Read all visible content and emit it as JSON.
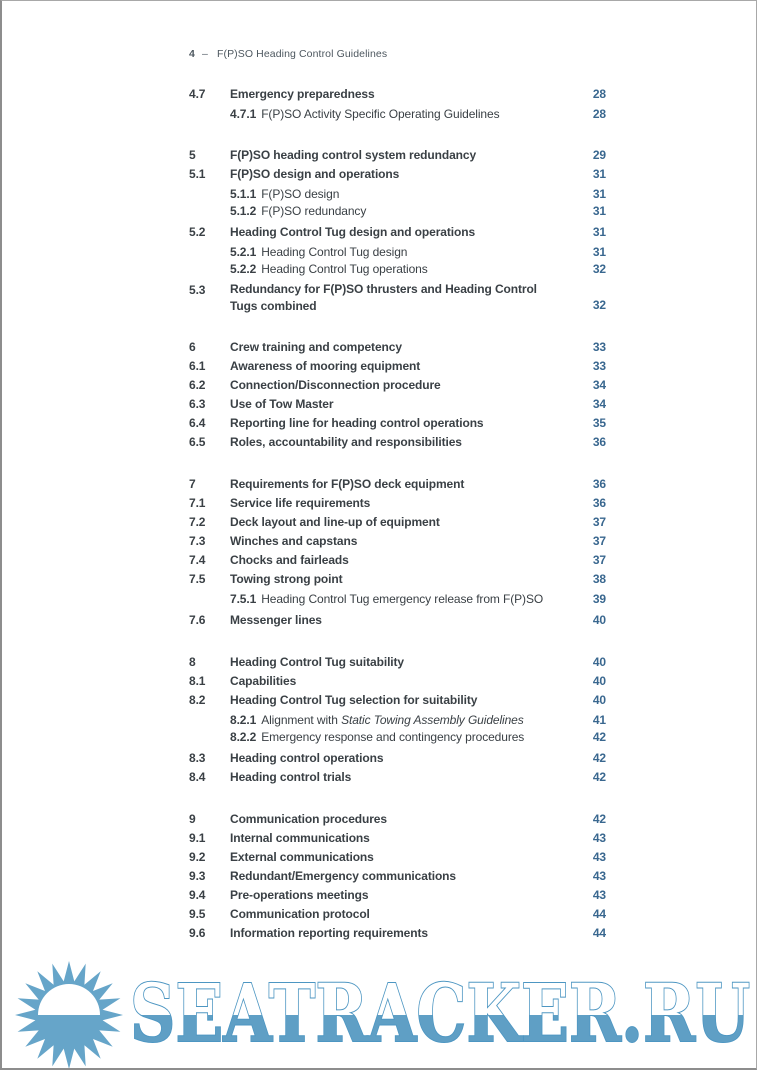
{
  "running_header": {
    "page_number": "4",
    "separator": "–",
    "title": "F(P)SO Heading Control Guidelines"
  },
  "toc": {
    "sections": [
      {
        "entries": [
          {
            "level": 2,
            "num": "4.7",
            "title": "Emergency preparedness",
            "page": "28"
          },
          {
            "level": 3,
            "num": "4.7.1",
            "title": "F(P)SO Activity Specific Operating Guidelines",
            "page": "28"
          }
        ]
      },
      {
        "entries": [
          {
            "level": 1,
            "num": "5",
            "title": "F(P)SO heading control system redundancy",
            "page": "29"
          },
          {
            "level": 2,
            "num": "5.1",
            "title": "F(P)SO design and operations",
            "page": "31"
          },
          {
            "level": 3,
            "num": "5.1.1",
            "title": "F(P)SO design",
            "page": "31"
          },
          {
            "level": 3,
            "num": "5.1.2",
            "title": "F(P)SO redundancy",
            "page": "31"
          },
          {
            "level": 2,
            "num": "5.2",
            "title": "Heading Control Tug design and operations",
            "page": "31"
          },
          {
            "level": 3,
            "num": "5.2.1",
            "title": "Heading Control Tug design",
            "page": "31"
          },
          {
            "level": 3,
            "num": "5.2.2",
            "title": "Heading Control Tug operations",
            "page": "32"
          },
          {
            "level": 2,
            "num": "5.3",
            "title_lines": [
              "Redundancy for F(P)SO thrusters and Heading Control",
              "Tugs combined"
            ],
            "page": "32"
          }
        ]
      },
      {
        "entries": [
          {
            "level": 1,
            "num": "6",
            "title": "Crew training and competency",
            "page": "33"
          },
          {
            "level": 2,
            "num": "6.1",
            "title": "Awareness of mooring equipment",
            "page": "33"
          },
          {
            "level": 2,
            "num": "6.2",
            "title": "Connection/Disconnection procedure",
            "page": "34"
          },
          {
            "level": 2,
            "num": "6.3",
            "title": "Use of Tow Master",
            "page": "34"
          },
          {
            "level": 2,
            "num": "6.4",
            "title": "Reporting line for heading control operations",
            "page": "35"
          },
          {
            "level": 2,
            "num": "6.5",
            "title": "Roles, accountability and responsibilities",
            "page": "36"
          }
        ]
      },
      {
        "entries": [
          {
            "level": 1,
            "num": "7",
            "title": "Requirements for F(P)SO deck equipment",
            "page": "36"
          },
          {
            "level": 2,
            "num": "7.1",
            "title": "Service life requirements",
            "page": "36"
          },
          {
            "level": 2,
            "num": "7.2",
            "title": "Deck layout and line-up of equipment",
            "page": "37"
          },
          {
            "level": 2,
            "num": "7.3",
            "title": "Winches and capstans",
            "page": "37"
          },
          {
            "level": 2,
            "num": "7.4",
            "title": "Chocks and fairleads",
            "page": "37"
          },
          {
            "level": 2,
            "num": "7.5",
            "title": "Towing strong point",
            "page": "38"
          },
          {
            "level": 3,
            "num": "7.5.1",
            "title": "Heading Control Tug emergency release from F(P)SO",
            "page": "39"
          },
          {
            "level": 2,
            "num": "7.6",
            "title": "Messenger lines",
            "page": "40"
          }
        ]
      },
      {
        "entries": [
          {
            "level": 1,
            "num": "8",
            "title": "Heading Control Tug suitability",
            "page": "40"
          },
          {
            "level": 2,
            "num": "8.1",
            "title": "Capabilities",
            "page": "40"
          },
          {
            "level": 2,
            "num": "8.2",
            "title": "Heading Control Tug selection for suitability",
            "page": "40"
          },
          {
            "level": 3,
            "num": "8.2.1",
            "title_parts": [
              {
                "text": "Alignment with "
              },
              {
                "text": "Static Towing Assembly Guidelines",
                "italic": true
              }
            ],
            "page": "41"
          },
          {
            "level": 3,
            "num": "8.2.2",
            "title": "Emergency response and contingency procedures",
            "page": "42"
          },
          {
            "level": 2,
            "num": "8.3",
            "title": "Heading control operations",
            "page": "42"
          },
          {
            "level": 2,
            "num": "8.4",
            "title": "Heading control trials",
            "page": "42"
          }
        ]
      },
      {
        "entries": [
          {
            "level": 1,
            "num": "9",
            "title": "Communication procedures",
            "page": "42"
          },
          {
            "level": 2,
            "num": "9.1",
            "title": "Internal communications",
            "page": "43"
          },
          {
            "level": 2,
            "num": "9.2",
            "title": "External communications",
            "page": "43"
          },
          {
            "level": 2,
            "num": "9.3",
            "title": "Redundant/Emergency communications",
            "page": "43"
          },
          {
            "level": 2,
            "num": "9.4",
            "title": "Pre-operations meetings",
            "page": "43"
          },
          {
            "level": 2,
            "num": "9.5",
            "title": "Communication protocol",
            "page": "44"
          },
          {
            "level": 2,
            "num": "9.6",
            "title": "Information reporting requirements",
            "page": "44"
          }
        ]
      }
    ]
  },
  "watermark": {
    "text": "SEATRACKER.RU",
    "icon": "sun-icon"
  },
  "colors": {
    "body_text": "#3a4045",
    "page_number_blue": "#39678f",
    "header_gray": "#4d575f",
    "watermark_blue": "#5f9fc5",
    "watermark_stroke": "#4d96c2"
  }
}
